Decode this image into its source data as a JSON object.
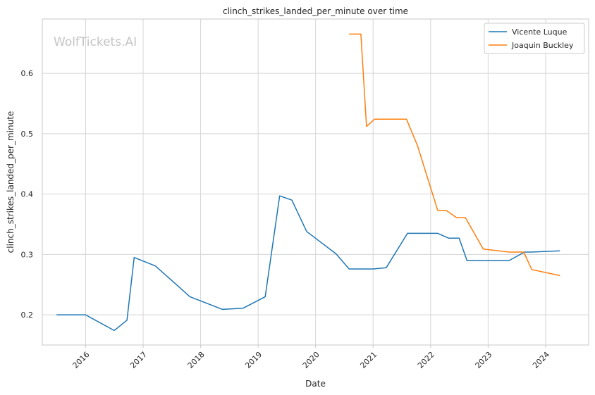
{
  "chart_data": {
    "type": "line",
    "title": "clinch_strikes_landed_per_minute over time",
    "xlabel": "Date",
    "ylabel": "clinch_strikes_landed_per_minute",
    "watermark": "WolfTickets.AI",
    "x_ticks": [
      "2016",
      "2017",
      "2018",
      "2019",
      "2020",
      "2021",
      "2022",
      "2023",
      "2024"
    ],
    "y_ticks": [
      "0.2",
      "0.3",
      "0.4",
      "0.5",
      "0.6"
    ],
    "xlim": [
      "2015-04-01",
      "2024-10-01"
    ],
    "ylim": [
      0.15,
      0.69
    ],
    "grid": true,
    "legend_position": "top-right",
    "series": [
      {
        "name": "Vicente Luque",
        "color": "#1f77b4",
        "points": [
          [
            "2015-07-01",
            0.2
          ],
          [
            "2015-12-31",
            0.2
          ],
          [
            "2016-07-01",
            0.174
          ],
          [
            "2016-09-20",
            0.191
          ],
          [
            "2016-11-05",
            0.295
          ],
          [
            "2017-03-20",
            0.281
          ],
          [
            "2017-10-25",
            0.23
          ],
          [
            "2018-05-20",
            0.209
          ],
          [
            "2018-09-28",
            0.211
          ],
          [
            "2019-02-15",
            0.23
          ],
          [
            "2019-05-18",
            0.397
          ],
          [
            "2019-08-03",
            0.39
          ],
          [
            "2019-11-05",
            0.338
          ],
          [
            "2020-05-10",
            0.301
          ],
          [
            "2020-08-01",
            0.276
          ],
          [
            "2021-01-01",
            0.276
          ],
          [
            "2021-03-25",
            0.278
          ],
          [
            "2021-08-07",
            0.335
          ],
          [
            "2022-02-15",
            0.335
          ],
          [
            "2022-04-25",
            0.327
          ],
          [
            "2022-07-01",
            0.327
          ],
          [
            "2022-08-20",
            0.29
          ],
          [
            "2023-05-15",
            0.29
          ],
          [
            "2023-08-20",
            0.304
          ],
          [
            "2023-10-01",
            0.304
          ],
          [
            "2024-04-01",
            0.306
          ]
        ]
      },
      {
        "name": "Joaquin Buckley",
        "color": "#ff7f0e",
        "points": [
          [
            "2020-08-01",
            0.665
          ],
          [
            "2020-10-15",
            0.665
          ],
          [
            "2020-11-20",
            0.512
          ],
          [
            "2021-01-10",
            0.524
          ],
          [
            "2021-08-01",
            0.524
          ],
          [
            "2021-10-10",
            0.48
          ],
          [
            "2022-02-15",
            0.373
          ],
          [
            "2022-04-10",
            0.373
          ],
          [
            "2022-06-15",
            0.361
          ],
          [
            "2022-08-10",
            0.361
          ],
          [
            "2022-12-01",
            0.309
          ],
          [
            "2023-05-15",
            0.304
          ],
          [
            "2023-08-15",
            0.304
          ],
          [
            "2023-10-05",
            0.275
          ],
          [
            "2024-04-01",
            0.265
          ]
        ]
      }
    ]
  }
}
